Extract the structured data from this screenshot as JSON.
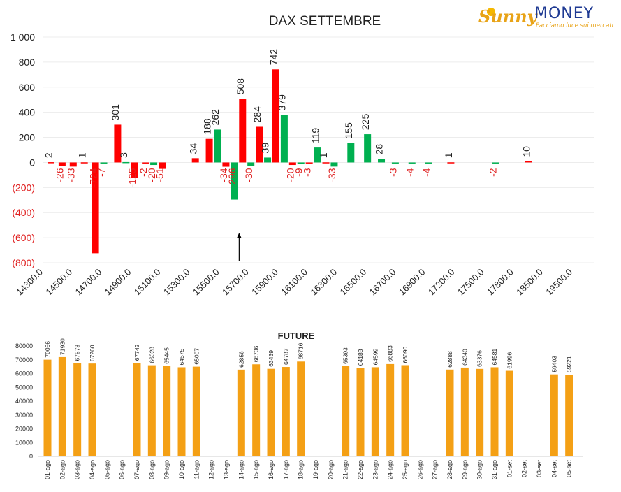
{
  "logo": {
    "brand_part1": "Sunny",
    "brand_part2": "MONEY",
    "tagline": "Facciamo luce sui mercati"
  },
  "chart_data": [
    {
      "type": "bar",
      "title": "DAX SETTEMBRE",
      "y_tick_labels": [
        "1 000",
        "800",
        "600",
        "400",
        "200",
        "0",
        "(200)",
        "(400)",
        "(600)",
        "(800)"
      ],
      "ylim": [
        -800,
        1000
      ],
      "x_tick_labels": [
        "14300.0",
        "14500.0",
        "14700.0",
        "14900.0",
        "15100.0",
        "15300.0",
        "15500.0",
        "15700.0",
        "15900.0",
        "16100.0",
        "16300.0",
        "16500.0",
        "16700.0",
        "16900.0",
        "17200.0",
        "17500.0",
        "17800.0",
        "18500.0",
        "19500.0"
      ],
      "colors": {
        "red": "#ff0000",
        "green": "#00b050",
        "negative_label": "#e02020"
      },
      "bars": [
        {
          "slot": 0.0,
          "value": 2,
          "color": "red"
        },
        {
          "slot": 1.0,
          "value": -26,
          "color": "red"
        },
        {
          "slot": 2.0,
          "value": -33,
          "color": "red"
        },
        {
          "slot": 3.0,
          "value": 1,
          "color": "red"
        },
        {
          "slot": 4.0,
          "value": -724,
          "color": "red"
        },
        {
          "slot": 4.75,
          "value": -7,
          "color": "green"
        },
        {
          "slot": 6.0,
          "value": 301,
          "color": "red"
        },
        {
          "slot": 6.75,
          "value": 3,
          "color": "green"
        },
        {
          "slot": 7.5,
          "value": -125,
          "color": "red"
        },
        {
          "slot": 8.5,
          "value": -2,
          "color": "red"
        },
        {
          "slot": 9.25,
          "value": -20,
          "color": "green"
        },
        {
          "slot": 10.0,
          "value": -51,
          "color": "red"
        },
        {
          "slot": 13.0,
          "value": 34,
          "color": "red"
        },
        {
          "slot": 14.25,
          "value": 188,
          "color": "red"
        },
        {
          "slot": 15.0,
          "value": 262,
          "color": "green"
        },
        {
          "slot": 15.75,
          "value": -34,
          "color": "red"
        },
        {
          "slot": 16.5,
          "value": -296,
          "color": "green"
        },
        {
          "slot": 17.25,
          "value": 508,
          "color": "red"
        },
        {
          "slot": 18.0,
          "value": -30,
          "color": "green"
        },
        {
          "slot": 18.75,
          "value": 284,
          "color": "red"
        },
        {
          "slot": 19.5,
          "value": 39,
          "color": "green"
        },
        {
          "slot": 20.25,
          "value": 742,
          "color": "red"
        },
        {
          "slot": 21.0,
          "value": 379,
          "color": "green"
        },
        {
          "slot": 21.75,
          "value": -20,
          "color": "red"
        },
        {
          "slot": 22.5,
          "value": -9,
          "color": "green"
        },
        {
          "slot": 23.25,
          "value": -3,
          "color": "red"
        },
        {
          "slot": 24.0,
          "value": 119,
          "color": "green"
        },
        {
          "slot": 24.75,
          "value": 1,
          "color": "red"
        },
        {
          "slot": 25.5,
          "value": -33,
          "color": "green"
        },
        {
          "slot": 27.0,
          "value": 155,
          "color": "green"
        },
        {
          "slot": 28.5,
          "value": 225,
          "color": "green"
        },
        {
          "slot": 29.75,
          "value": 28,
          "color": "green"
        },
        {
          "slot": 31.0,
          "value": -3,
          "color": "green"
        },
        {
          "slot": 32.5,
          "value": -4,
          "color": "green"
        },
        {
          "slot": 34.0,
          "value": -4,
          "color": "green"
        },
        {
          "slot": 36.0,
          "value": 1,
          "color": "red"
        },
        {
          "slot": 40.0,
          "value": -2,
          "color": "green"
        },
        {
          "slot": 43.0,
          "value": 10,
          "color": "red"
        }
      ],
      "arrow_at_slot": 16.5
    },
    {
      "type": "bar",
      "title": "FUTURE",
      "ylim": [
        0,
        80000
      ],
      "y_tick_labels": [
        "80000",
        "70000",
        "60000",
        "50000",
        "40000",
        "30000",
        "20000",
        "10000",
        "0"
      ],
      "color": "#f4a015",
      "categories": [
        "01-ago",
        "02-ago",
        "03-ago",
        "04-ago",
        "05-ago",
        "06-ago",
        "07-ago",
        "08-ago",
        "09-ago",
        "10-ago",
        "11-ago",
        "12-ago",
        "13-ago",
        "14-ago",
        "15-ago",
        "16-ago",
        "17-ago",
        "18-ago",
        "19-ago",
        "20-ago",
        "21-ago",
        "22-ago",
        "23-ago",
        "24-ago",
        "25-ago",
        "26-ago",
        "27-ago",
        "28-ago",
        "29-ago",
        "30-ago",
        "31-ago",
        "01-set",
        "02-set",
        "03-set",
        "04-set",
        "05-set"
      ],
      "values": [
        70056,
        71930,
        67578,
        67260,
        null,
        null,
        67742,
        66028,
        65445,
        64575,
        65007,
        null,
        null,
        62856,
        66706,
        63439,
        64787,
        68716,
        null,
        null,
        65393,
        64188,
        64599,
        66883,
        66090,
        null,
        null,
        62888,
        64340,
        63376,
        64581,
        61996,
        null,
        null,
        59403,
        59221
      ]
    }
  ]
}
